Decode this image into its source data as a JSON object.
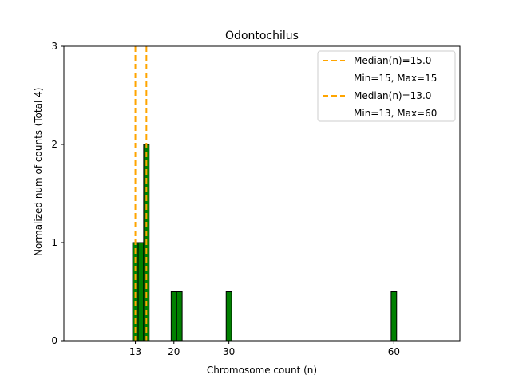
{
  "chart_data": {
    "type": "bar",
    "title": "Odontochilus",
    "xlabel": "Chromosome count (n)",
    "ylabel": "Normalized num of counts",
    "ylabel_note": "(Total 4)",
    "xlim": [
      0,
      72
    ],
    "ylim": [
      0,
      3
    ],
    "xticks": [
      13,
      20,
      30,
      60
    ],
    "yticks": [
      0,
      1,
      2,
      3
    ],
    "bars": [
      {
        "x": 13,
        "value": 1
      },
      {
        "x": 14,
        "value": 1
      },
      {
        "x": 15,
        "value": 2
      },
      {
        "x": 20,
        "value": 0.5
      },
      {
        "x": 21,
        "value": 0.5
      },
      {
        "x": 30,
        "value": 0.5
      },
      {
        "x": 60,
        "value": 0.5
      }
    ],
    "bar_color": "#008000",
    "median_lines": [
      {
        "x": 15.0,
        "label": "Median(n)=15.0",
        "range_label": "Min=15, Max=15"
      },
      {
        "x": 13.0,
        "label": "Median(n)=13.0",
        "range_label": "Min=13, Max=60"
      }
    ],
    "median_color": "#FFA500",
    "legend_position": "top-right"
  }
}
